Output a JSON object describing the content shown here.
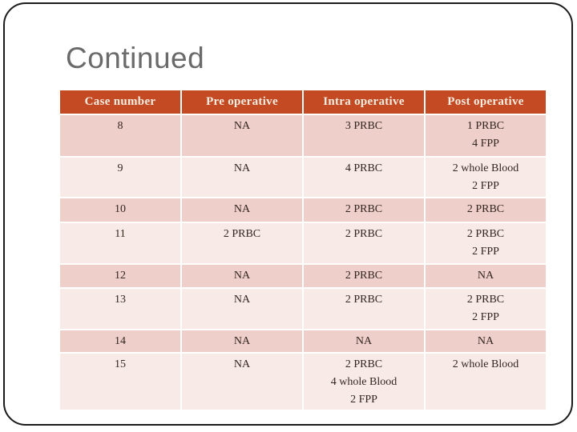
{
  "slide": {
    "title": "Continued",
    "table": {
      "headers": [
        "Case number",
        "Pre operative",
        "Intra operative",
        "Post operative"
      ],
      "rows": [
        {
          "case": "8",
          "pre": "NA",
          "intra": "3 PRBC",
          "post": "1 PRBC\n4 FPP"
        },
        {
          "case": "9",
          "pre": "NA",
          "intra": "4 PRBC",
          "post": "2 whole Blood\n2 FPP"
        },
        {
          "case": "10",
          "pre": "NA",
          "intra": "2 PRBC",
          "post": "2 PRBC"
        },
        {
          "case": "11",
          "pre": "2 PRBC",
          "intra": "2 PRBC",
          "post": "2 PRBC\n2 FPP"
        },
        {
          "case": "12",
          "pre": "NA",
          "intra": "2 PRBC",
          "post": "NA"
        },
        {
          "case": "13",
          "pre": "NA",
          "intra": "2 PRBC",
          "post": "2 PRBC\n2 FPP"
        },
        {
          "case": "14",
          "pre": "NA",
          "intra": "NA",
          "post": "NA"
        },
        {
          "case": "15",
          "pre": "NA",
          "intra": "2 PRBC\n4 whole Blood\n2 FPP",
          "post": "2 whole Blood"
        }
      ]
    }
  },
  "theme": {
    "colors": {
      "header_bg": "#c34a22",
      "header_text": "#f7eee3",
      "row_odd_bg": "#efcfc9",
      "row_even_bg": "#f8eae6",
      "body_text": "#33261f",
      "title_text": "#6a6a6a",
      "frame_border": "#1b1b1b"
    }
  }
}
